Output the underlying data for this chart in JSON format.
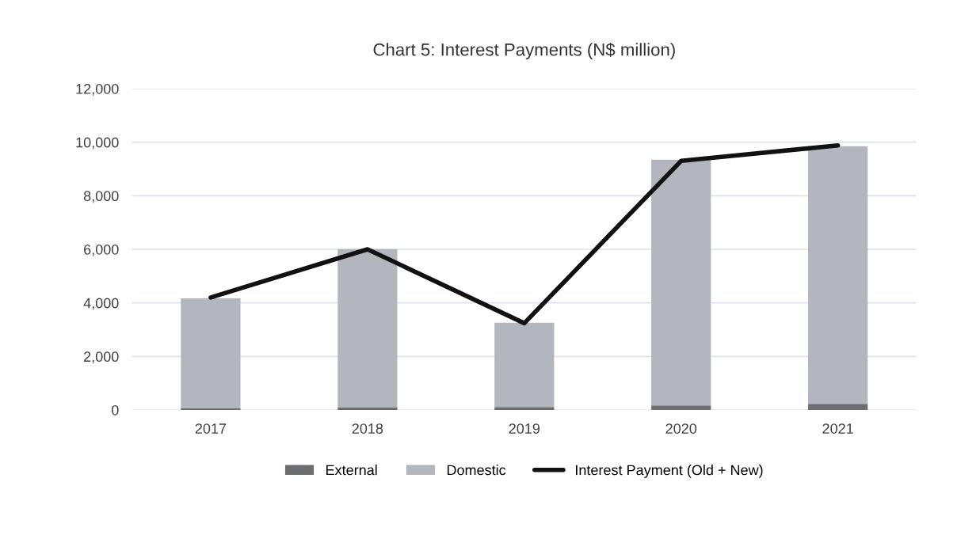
{
  "chart_data": {
    "type": "bar",
    "stacked": true,
    "title": "Chart 5: Interest Payments (N$ million)",
    "categories": [
      "2017",
      "2018",
      "2019",
      "2020",
      "2021"
    ],
    "series": [
      {
        "name": "External",
        "color": "#6d6e72",
        "values": [
          60,
          90,
          110,
          170,
          230
        ]
      },
      {
        "name": "Domestic",
        "color": "#b4b6be",
        "values": [
          4110,
          5920,
          3150,
          9180,
          9620
        ]
      },
      {
        "name": "Interest Payment (Old + New)",
        "type": "line",
        "color": "#111111",
        "values": [
          4200,
          6000,
          3240,
          9300,
          9880
        ]
      }
    ],
    "ylim": [
      0,
      12000
    ],
    "yticks": [
      {
        "value": 0,
        "label": "0"
      },
      {
        "value": 2000,
        "label": "2,000"
      },
      {
        "value": 4000,
        "label": "4,000"
      },
      {
        "value": 6000,
        "label": "6,000"
      },
      {
        "value": 8000,
        "label": "8,000"
      },
      {
        "value": 10000,
        "label": "10,000"
      },
      {
        "value": 12000,
        "label": "12,000"
      }
    ],
    "grid": "y",
    "legend": "bottom"
  }
}
